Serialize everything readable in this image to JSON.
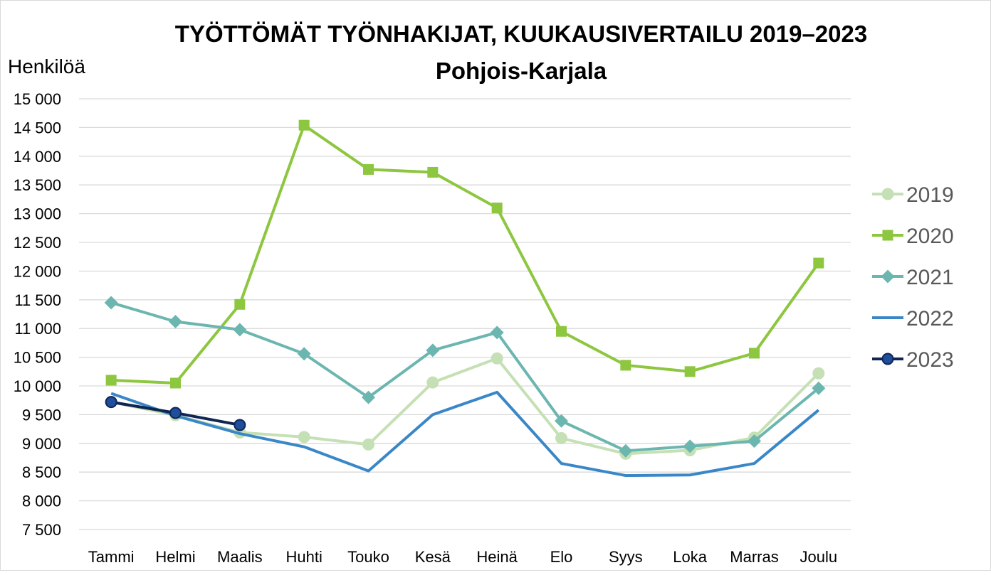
{
  "chart_data": {
    "type": "line",
    "title": "TYÖTTÖMÄT TYÖNHAKIJAT, KUUKAUSIVERTAILU 2019–2023",
    "subtitle": "Pohjois-Karjala",
    "xlabel": "",
    "ylabel": "Henkilöä",
    "ylim": [
      7500,
      15000
    ],
    "yticks": [
      7500,
      8000,
      8500,
      9000,
      9500,
      10000,
      10500,
      11000,
      11500,
      12000,
      12500,
      13000,
      13500,
      14000,
      14500,
      15000
    ],
    "ytick_labels": [
      "7 500",
      "8 000",
      "8 500",
      "9 000",
      "9 500",
      "10 000",
      "10 500",
      "11 000",
      "11 500",
      "12 000",
      "12 500",
      "13 000",
      "13 500",
      "14 000",
      "14 500",
      "15 000"
    ],
    "categories": [
      "Tammi",
      "Helmi",
      "Maalis",
      "Huhti",
      "Touko",
      "Kesä",
      "Heinä",
      "Elo",
      "Syys",
      "Loka",
      "Marras",
      "Joulu"
    ],
    "grid": true,
    "legend_position": "right",
    "series": [
      {
        "name": "2019",
        "color": "#c5e0b4",
        "marker": "circle",
        "values": [
          9720,
          9490,
          9190,
          9110,
          8980,
          10060,
          10480,
          9090,
          8820,
          8880,
          9100,
          10220
        ]
      },
      {
        "name": "2020",
        "color": "#8dc63f",
        "marker": "square",
        "values": [
          10100,
          10050,
          11420,
          14540,
          13770,
          13720,
          13100,
          10950,
          10360,
          10250,
          10570,
          12140
        ]
      },
      {
        "name": "2021",
        "color": "#6cb6b0",
        "marker": "diamond",
        "values": [
          11450,
          11120,
          10980,
          10560,
          9800,
          10620,
          10930,
          9390,
          8870,
          8950,
          9040,
          9960
        ]
      },
      {
        "name": "2022",
        "color": "#3a87c8",
        "marker": "none",
        "values": [
          9870,
          9480,
          9170,
          8940,
          8520,
          9500,
          9890,
          8650,
          8440,
          8450,
          8650,
          9580
        ]
      },
      {
        "name": "2023",
        "color": "#0f2554",
        "markerFill": "#1f4e9c",
        "marker": "circle",
        "values": [
          9720,
          9530,
          9320,
          null,
          null,
          null,
          null,
          null,
          null,
          null,
          null,
          null
        ]
      }
    ]
  }
}
